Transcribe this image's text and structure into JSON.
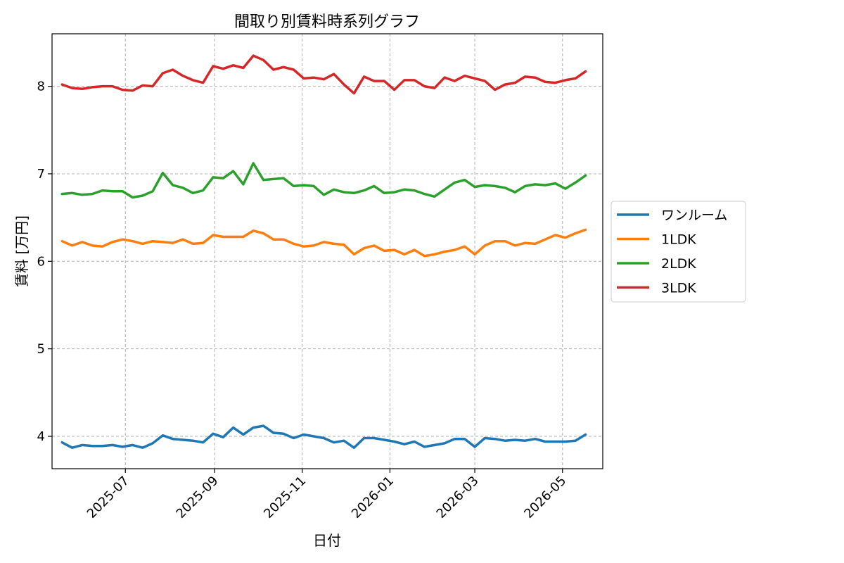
{
  "chart_data": {
    "type": "line",
    "title": "間取り別賃料時系列グラフ",
    "xlabel": "日付",
    "ylabel": "賃料 [万円]",
    "xlim": [
      "2025-05-11",
      "2026-05-29"
    ],
    "ylim": [
      3.63,
      8.6
    ],
    "x_ticks": [
      "2025-07-01",
      "2025-09-01",
      "2025-11-01",
      "2026-01-01",
      "2026-03-01",
      "2026-05-01"
    ],
    "x_tick_labels": [
      "2025-07",
      "2025-09",
      "2025-11",
      "2026-01",
      "2026-03",
      "2026-05"
    ],
    "y_ticks": [
      4,
      5,
      6,
      7,
      8
    ],
    "grid": true,
    "legend_position": "outside-right",
    "x": [
      "2025-05-18",
      "2025-05-25",
      "2025-06-01",
      "2025-06-08",
      "2025-06-15",
      "2025-06-22",
      "2025-06-29",
      "2025-07-06",
      "2025-07-13",
      "2025-07-20",
      "2025-07-27",
      "2025-08-03",
      "2025-08-10",
      "2025-08-17",
      "2025-08-24",
      "2025-08-31",
      "2025-09-07",
      "2025-09-14",
      "2025-09-21",
      "2025-09-28",
      "2025-10-05",
      "2025-10-12",
      "2025-10-19",
      "2025-10-26",
      "2025-11-02",
      "2025-11-09",
      "2025-11-16",
      "2025-11-23",
      "2025-11-30",
      "2025-12-07",
      "2025-12-14",
      "2025-12-21",
      "2025-12-28",
      "2026-01-04",
      "2026-01-11",
      "2026-01-18",
      "2026-01-25",
      "2026-02-01",
      "2026-02-08",
      "2026-02-15",
      "2026-02-22",
      "2026-03-01",
      "2026-03-08",
      "2026-03-15",
      "2026-03-22",
      "2026-03-29",
      "2026-04-05",
      "2026-04-12",
      "2026-04-19",
      "2026-04-26",
      "2026-05-03",
      "2026-05-10",
      "2026-05-17"
    ],
    "series": [
      {
        "name": "ワンルーム",
        "color": "#1f77b4",
        "values": [
          3.93,
          3.87,
          3.9,
          3.89,
          3.89,
          3.9,
          3.88,
          3.9,
          3.87,
          3.92,
          4.01,
          3.97,
          3.96,
          3.95,
          3.93,
          4.03,
          3.99,
          4.1,
          4.02,
          4.1,
          4.12,
          4.04,
          4.03,
          3.98,
          4.02,
          4.0,
          3.98,
          3.93,
          3.95,
          3.87,
          3.98,
          3.98,
          3.96,
          3.94,
          3.91,
          3.94,
          3.88,
          3.9,
          3.92,
          3.97,
          3.97,
          3.88,
          3.98,
          3.97,
          3.95,
          3.96,
          3.95,
          3.97,
          3.94,
          3.94,
          3.94,
          3.95,
          4.02
        ]
      },
      {
        "name": "1LDK",
        "color": "#ff7f0e",
        "values": [
          6.23,
          6.18,
          6.22,
          6.18,
          6.17,
          6.22,
          6.25,
          6.23,
          6.2,
          6.23,
          6.22,
          6.21,
          6.25,
          6.2,
          6.21,
          6.3,
          6.28,
          6.28,
          6.28,
          6.35,
          6.32,
          6.25,
          6.25,
          6.2,
          6.17,
          6.18,
          6.22,
          6.2,
          6.19,
          6.08,
          6.15,
          6.18,
          6.12,
          6.13,
          6.08,
          6.13,
          6.06,
          6.08,
          6.11,
          6.13,
          6.17,
          6.08,
          6.18,
          6.23,
          6.23,
          6.18,
          6.21,
          6.2,
          6.25,
          6.3,
          6.27,
          6.32,
          6.36
        ]
      },
      {
        "name": "2LDK",
        "color": "#2ca02c",
        "values": [
          6.77,
          6.78,
          6.76,
          6.77,
          6.81,
          6.8,
          6.8,
          6.73,
          6.75,
          6.8,
          7.01,
          6.87,
          6.84,
          6.78,
          6.81,
          6.96,
          6.95,
          7.03,
          6.88,
          7.12,
          6.93,
          6.94,
          6.95,
          6.86,
          6.87,
          6.86,
          6.76,
          6.82,
          6.79,
          6.78,
          6.81,
          6.86,
          6.78,
          6.79,
          6.82,
          6.81,
          6.77,
          6.74,
          6.82,
          6.9,
          6.93,
          6.85,
          6.87,
          6.86,
          6.84,
          6.79,
          6.86,
          6.88,
          6.87,
          6.89,
          6.83,
          6.9,
          6.98
        ]
      },
      {
        "name": "3LDK",
        "color": "#d62728",
        "values": [
          8.02,
          7.98,
          7.97,
          7.99,
          8.0,
          8.0,
          7.96,
          7.95,
          8.01,
          8.0,
          8.15,
          8.19,
          8.12,
          8.07,
          8.04,
          8.23,
          8.2,
          8.24,
          8.21,
          8.35,
          8.3,
          8.19,
          8.22,
          8.19,
          8.09,
          8.1,
          8.08,
          8.14,
          8.02,
          7.92,
          8.11,
          8.06,
          8.06,
          7.96,
          8.07,
          8.07,
          8.0,
          7.98,
          8.1,
          8.06,
          8.12,
          8.09,
          8.06,
          7.96,
          8.02,
          8.04,
          8.11,
          8.1,
          8.05,
          8.04,
          8.07,
          8.09,
          8.17
        ]
      }
    ]
  }
}
